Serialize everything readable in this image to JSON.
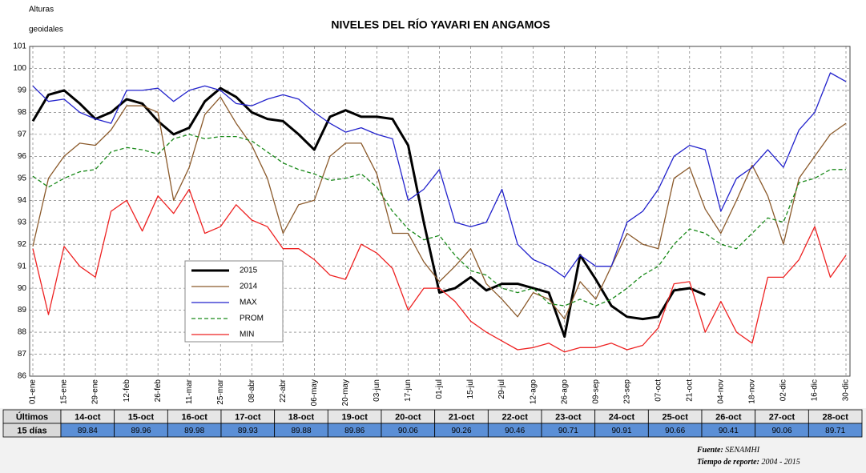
{
  "chart_data": {
    "type": "line",
    "title": "NIVELES DEL RÍO YAVARI EN ANGAMOS",
    "ylabel_lines": [
      "Alturas",
      "geoidales"
    ],
    "categories": [
      "01-ene",
      null,
      "15-ene",
      null,
      "29-ene",
      null,
      "12-feb",
      null,
      "26-feb",
      null,
      "11-mar",
      null,
      "25-mar",
      null,
      "08-abr",
      null,
      "22-abr",
      null,
      "06-may",
      null,
      "20-may",
      null,
      "03-jun",
      null,
      "17-jun",
      null,
      "01-jul",
      null,
      "15-jul",
      null,
      "29-jul",
      null,
      "12-ago",
      null,
      "26-ago",
      null,
      "09-sep",
      null,
      "23-sep",
      null,
      "07-oct",
      null,
      "21-oct",
      null,
      "04-nov",
      null,
      "18-nov",
      null,
      "02-dic",
      null,
      "16-dic",
      null,
      "30-dic"
    ],
    "ylim": [
      86,
      101
    ],
    "yticks": [
      86,
      87,
      88,
      89,
      90,
      91,
      92,
      93,
      94,
      95,
      96,
      97,
      98,
      99,
      100,
      101
    ],
    "grid": true,
    "series": [
      {
        "name": "2015",
        "color": "#000000",
        "line_weight": "heavy",
        "values": [
          97.6,
          98.8,
          99.0,
          98.4,
          97.7,
          98.0,
          98.6,
          98.4,
          97.6,
          97.0,
          97.3,
          98.5,
          99.1,
          98.7,
          98.0,
          97.7,
          97.6,
          97.0,
          96.3,
          97.8,
          98.1,
          97.8,
          97.8,
          97.7,
          96.5,
          93.0,
          89.8,
          90.0,
          90.5,
          89.9,
          90.2,
          90.2,
          90.0,
          89.8,
          87.8,
          91.5,
          90.4,
          89.2,
          88.7,
          88.6,
          88.7,
          89.9,
          90.0,
          89.7,
          null,
          null,
          null,
          null,
          null,
          null,
          null,
          null,
          null
        ]
      },
      {
        "name": "2014",
        "color": "#8b5a2b",
        "values": [
          91.9,
          95.0,
          96.0,
          96.6,
          96.5,
          97.2,
          98.3,
          98.3,
          98.0,
          94.0,
          95.5,
          97.9,
          98.7,
          97.5,
          96.5,
          95.0,
          92.5,
          93.8,
          94.0,
          96.0,
          96.6,
          96.6,
          95.2,
          92.5,
          92.5,
          91.2,
          90.3,
          91.0,
          91.8,
          90.2,
          89.5,
          88.7,
          89.8,
          89.5,
          88.6,
          90.3,
          89.5,
          91.0,
          92.5,
          92.0,
          91.8,
          95.0,
          95.5,
          93.6,
          92.5,
          94.0,
          95.6,
          94.2,
          92.0,
          95.0,
          96.0,
          97.0,
          97.5
        ]
      },
      {
        "name": "MAX",
        "color": "#2222cc",
        "values": [
          99.2,
          98.5,
          98.6,
          98.0,
          97.7,
          97.5,
          99.0,
          99.0,
          99.1,
          98.5,
          99.0,
          99.2,
          99.0,
          98.4,
          98.3,
          98.6,
          98.8,
          98.6,
          98.0,
          97.5,
          97.1,
          97.3,
          97.0,
          96.8,
          94.0,
          94.5,
          95.4,
          93.0,
          92.8,
          93.0,
          94.5,
          92.0,
          91.3,
          91.0,
          90.5,
          91.5,
          91.0,
          91.0,
          93.0,
          93.5,
          94.5,
          96.0,
          96.5,
          96.3,
          93.5,
          95.0,
          95.5,
          96.3,
          95.5,
          97.2,
          98.0,
          99.8,
          99.4
        ]
      },
      {
        "name": "PROM",
        "color": "#1a8a1a",
        "line_style": "dashed",
        "values": [
          95.1,
          94.6,
          95.0,
          95.3,
          95.4,
          96.2,
          96.4,
          96.3,
          96.1,
          96.8,
          97.0,
          96.8,
          96.9,
          96.9,
          96.7,
          96.2,
          95.7,
          95.4,
          95.2,
          94.9,
          95.0,
          95.2,
          94.6,
          93.5,
          92.7,
          92.2,
          92.4,
          91.5,
          90.8,
          90.6,
          90.0,
          89.8,
          90.0,
          89.3,
          89.2,
          89.5,
          89.2,
          89.5,
          90.0,
          90.6,
          91.0,
          92.0,
          92.7,
          92.5,
          92.0,
          91.8,
          92.5,
          93.2,
          93.0,
          94.8,
          95.0,
          95.4,
          95.4
        ]
      },
      {
        "name": "MIN",
        "color": "#ee2222",
        "values": [
          91.8,
          88.8,
          91.9,
          91.0,
          90.5,
          93.5,
          94.0,
          92.6,
          94.2,
          93.4,
          94.5,
          92.5,
          92.8,
          93.8,
          93.1,
          92.8,
          91.8,
          91.8,
          91.3,
          90.6,
          90.4,
          92.0,
          91.6,
          90.9,
          89.0,
          90.0,
          90.0,
          89.4,
          88.5,
          88.0,
          87.6,
          87.2,
          87.3,
          87.5,
          87.1,
          87.3,
          87.3,
          87.5,
          87.2,
          87.4,
          88.2,
          90.2,
          90.3,
          88.0,
          89.4,
          88.0,
          87.5,
          90.5,
          90.5,
          91.3,
          92.8,
          90.5,
          91.5
        ]
      }
    ]
  },
  "table": {
    "row_labels": [
      "Últimos",
      "15 días"
    ],
    "dates": [
      "14-oct",
      "15-oct",
      "16-oct",
      "17-oct",
      "18-oct",
      "19-oct",
      "20-oct",
      "21-oct",
      "22-oct",
      "23-oct",
      "24-oct",
      "25-oct",
      "26-oct",
      "27-oct",
      "28-oct"
    ],
    "values": [
      89.84,
      89.96,
      89.98,
      89.93,
      89.88,
      89.86,
      90.06,
      90.26,
      90.46,
      90.71,
      90.91,
      90.66,
      90.41,
      90.06,
      89.71
    ]
  },
  "footer": {
    "source_label": "Fuente:",
    "source": "SENAMHI",
    "report_label": "Tiempo de reporte:",
    "report": "2004  -  2015"
  }
}
